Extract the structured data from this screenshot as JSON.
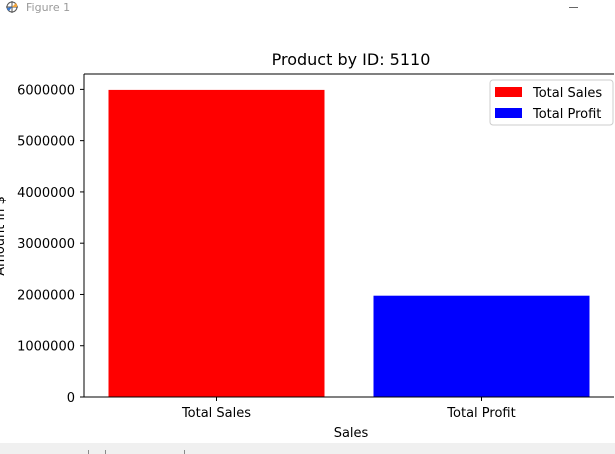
{
  "window": {
    "title": "Figure 1",
    "icon": "matplotlib-figure-icon",
    "minimize_icon": "minimize-icon"
  },
  "chart_data": {
    "type": "bar",
    "title": "Product by ID: 5110",
    "xlabel": "Sales",
    "ylabel": "Amount in $",
    "categories": [
      "Total Sales",
      "Total Profit"
    ],
    "values": [
      5990000,
      1975000
    ],
    "colors": [
      "#ff0000",
      "#0000ff"
    ],
    "ylim": [
      0,
      6300000
    ],
    "yticks": [
      0,
      1000000,
      2000000,
      3000000,
      4000000,
      5000000,
      6000000
    ],
    "ytick_labels": [
      "0",
      "1000000",
      "2000000",
      "3000000",
      "4000000",
      "5000000",
      "6000000"
    ],
    "legend": {
      "placement": "top-right",
      "entries": [
        {
          "label": "Total Sales",
          "color": "#ff0000"
        },
        {
          "label": "Total Profit",
          "color": "#0000ff"
        }
      ]
    },
    "grid": false
  }
}
